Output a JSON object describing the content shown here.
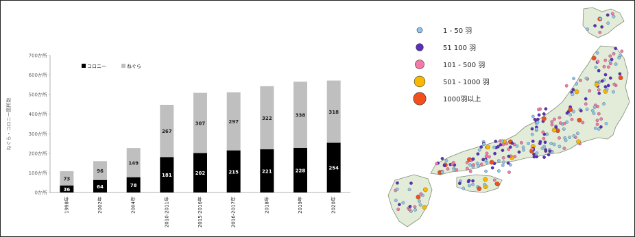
{
  "chart_data": {
    "type": "bar",
    "stacked": true,
    "ylabel": "ねぐら・コロニー箇所数",
    "ylim": [
      0,
      700
    ],
    "yticks": [
      "0か所",
      "100か所",
      "200か所",
      "300か所",
      "400か所",
      "500か所",
      "600か所",
      "700か所"
    ],
    "categories": [
      "1998年",
      "2002年",
      "2004年",
      "2010-2011年",
      "2015-2016年",
      "2016-2017年",
      "2018年",
      "2019年",
      "2020年"
    ],
    "series": [
      {
        "name": "コロニー",
        "color": "#000000",
        "values": [
          36,
          64,
          78,
          181,
          202,
          215,
          221,
          228,
          254
        ]
      },
      {
        "name": "ねぐら",
        "color": "#bfbfbf",
        "values": [
          73,
          96,
          149,
          267,
          307,
          297,
          322,
          338,
          318
        ]
      }
    ],
    "legend": "top-left",
    "grid": false
  },
  "map": {
    "legend": [
      {
        "label": "1 - 50 羽",
        "color": "#8ec6ea"
      },
      {
        "label": "51 100 羽",
        "color": "#5a2fc0"
      },
      {
        "label": "101 - 500 羽",
        "color": "#f27aa6"
      },
      {
        "label": "501 - 1000 羽",
        "color": "#f6b800"
      },
      {
        "label": "1000羽以上",
        "color": "#f0501e"
      }
    ]
  }
}
